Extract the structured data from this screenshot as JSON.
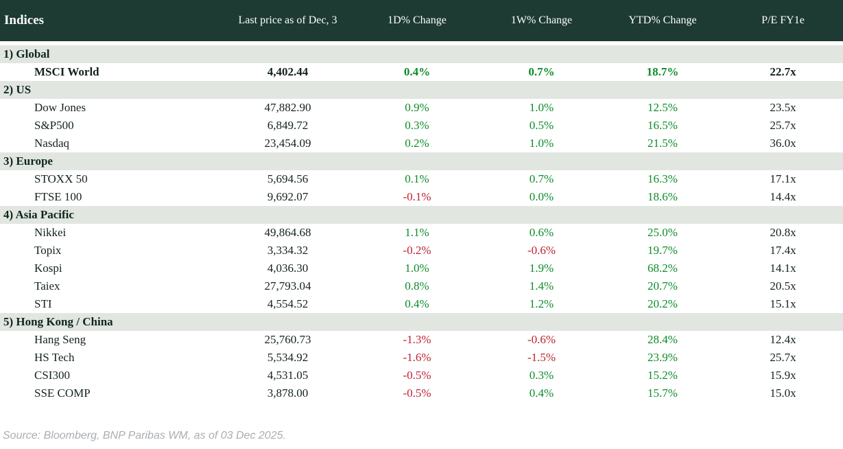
{
  "chart_data": {
    "type": "table",
    "title": "Indices",
    "columns": [
      "Last price as of Dec, 3",
      "1D% Change",
      "1W% Change",
      "YTD% Change",
      "P/E FY1e"
    ],
    "sections": [
      {
        "label": "1) Global",
        "rows": [
          {
            "name": "MSCI World",
            "price": "4,402.44",
            "d1": "0.4%",
            "w1": "0.7%",
            "ytd": "18.7%",
            "pe": "22.7x",
            "bold": true
          }
        ]
      },
      {
        "label": "2) US",
        "rows": [
          {
            "name": "Dow Jones",
            "price": "47,882.90",
            "d1": "0.9%",
            "w1": "1.0%",
            "ytd": "12.5%",
            "pe": "23.5x"
          },
          {
            "name": "S&P500",
            "price": "6,849.72",
            "d1": "0.3%",
            "w1": "0.5%",
            "ytd": "16.5%",
            "pe": "25.7x"
          },
          {
            "name": "Nasdaq",
            "price": "23,454.09",
            "d1": "0.2%",
            "w1": "1.0%",
            "ytd": "21.5%",
            "pe": "36.0x"
          }
        ]
      },
      {
        "label": "3) Europe",
        "rows": [
          {
            "name": "STOXX 50",
            "price": "5,694.56",
            "d1": "0.1%",
            "w1": "0.7%",
            "ytd": "16.3%",
            "pe": "17.1x"
          },
          {
            "name": "FTSE 100",
            "price": "9,692.07",
            "d1": "-0.1%",
            "w1": "0.0%",
            "ytd": "18.6%",
            "pe": "14.4x"
          }
        ]
      },
      {
        "label": "4) Asia Pacific",
        "rows": [
          {
            "name": "Nikkei",
            "price": "49,864.68",
            "d1": "1.1%",
            "w1": "0.6%",
            "ytd": "25.0%",
            "pe": "20.8x"
          },
          {
            "name": "Topix",
            "price": "3,334.32",
            "d1": "-0.2%",
            "w1": "-0.6%",
            "ytd": "19.7%",
            "pe": "17.4x"
          },
          {
            "name": "Kospi",
            "price": "4,036.30",
            "d1": "1.0%",
            "w1": "1.9%",
            "ytd": "68.2%",
            "pe": "14.1x"
          },
          {
            "name": "Taiex",
            "price": "27,793.04",
            "d1": "0.8%",
            "w1": "1.4%",
            "ytd": "20.7%",
            "pe": "20.5x"
          },
          {
            "name": "STI",
            "price": "4,554.52",
            "d1": "0.4%",
            "w1": "1.2%",
            "ytd": "20.2%",
            "pe": "15.1x"
          }
        ]
      },
      {
        "label": "5) Hong Kong / China",
        "rows": [
          {
            "name": "Hang Seng",
            "price": "25,760.73",
            "d1": "-1.3%",
            "w1": "-0.6%",
            "ytd": "28.4%",
            "pe": "12.4x"
          },
          {
            "name": "HS Tech",
            "price": "5,534.92",
            "d1": "-1.6%",
            "w1": "-1.5%",
            "ytd": "23.9%",
            "pe": "25.7x"
          },
          {
            "name": "CSI300",
            "price": "4,531.05",
            "d1": "-0.5%",
            "w1": "0.3%",
            "ytd": "15.2%",
            "pe": "15.9x"
          },
          {
            "name": "SSE COMP",
            "price": "3,878.00",
            "d1": "-0.5%",
            "w1": "0.4%",
            "ytd": "15.7%",
            "pe": "15.0x"
          }
        ]
      }
    ],
    "source": "Source: Bloomberg, BNP Paribas WM, as of 03 Dec 2025."
  },
  "colors": {
    "header_bg": "#1d3a33",
    "band_bg": "#e1e6e1",
    "positive": "#0b8c27",
    "negative": "#bd2230"
  }
}
